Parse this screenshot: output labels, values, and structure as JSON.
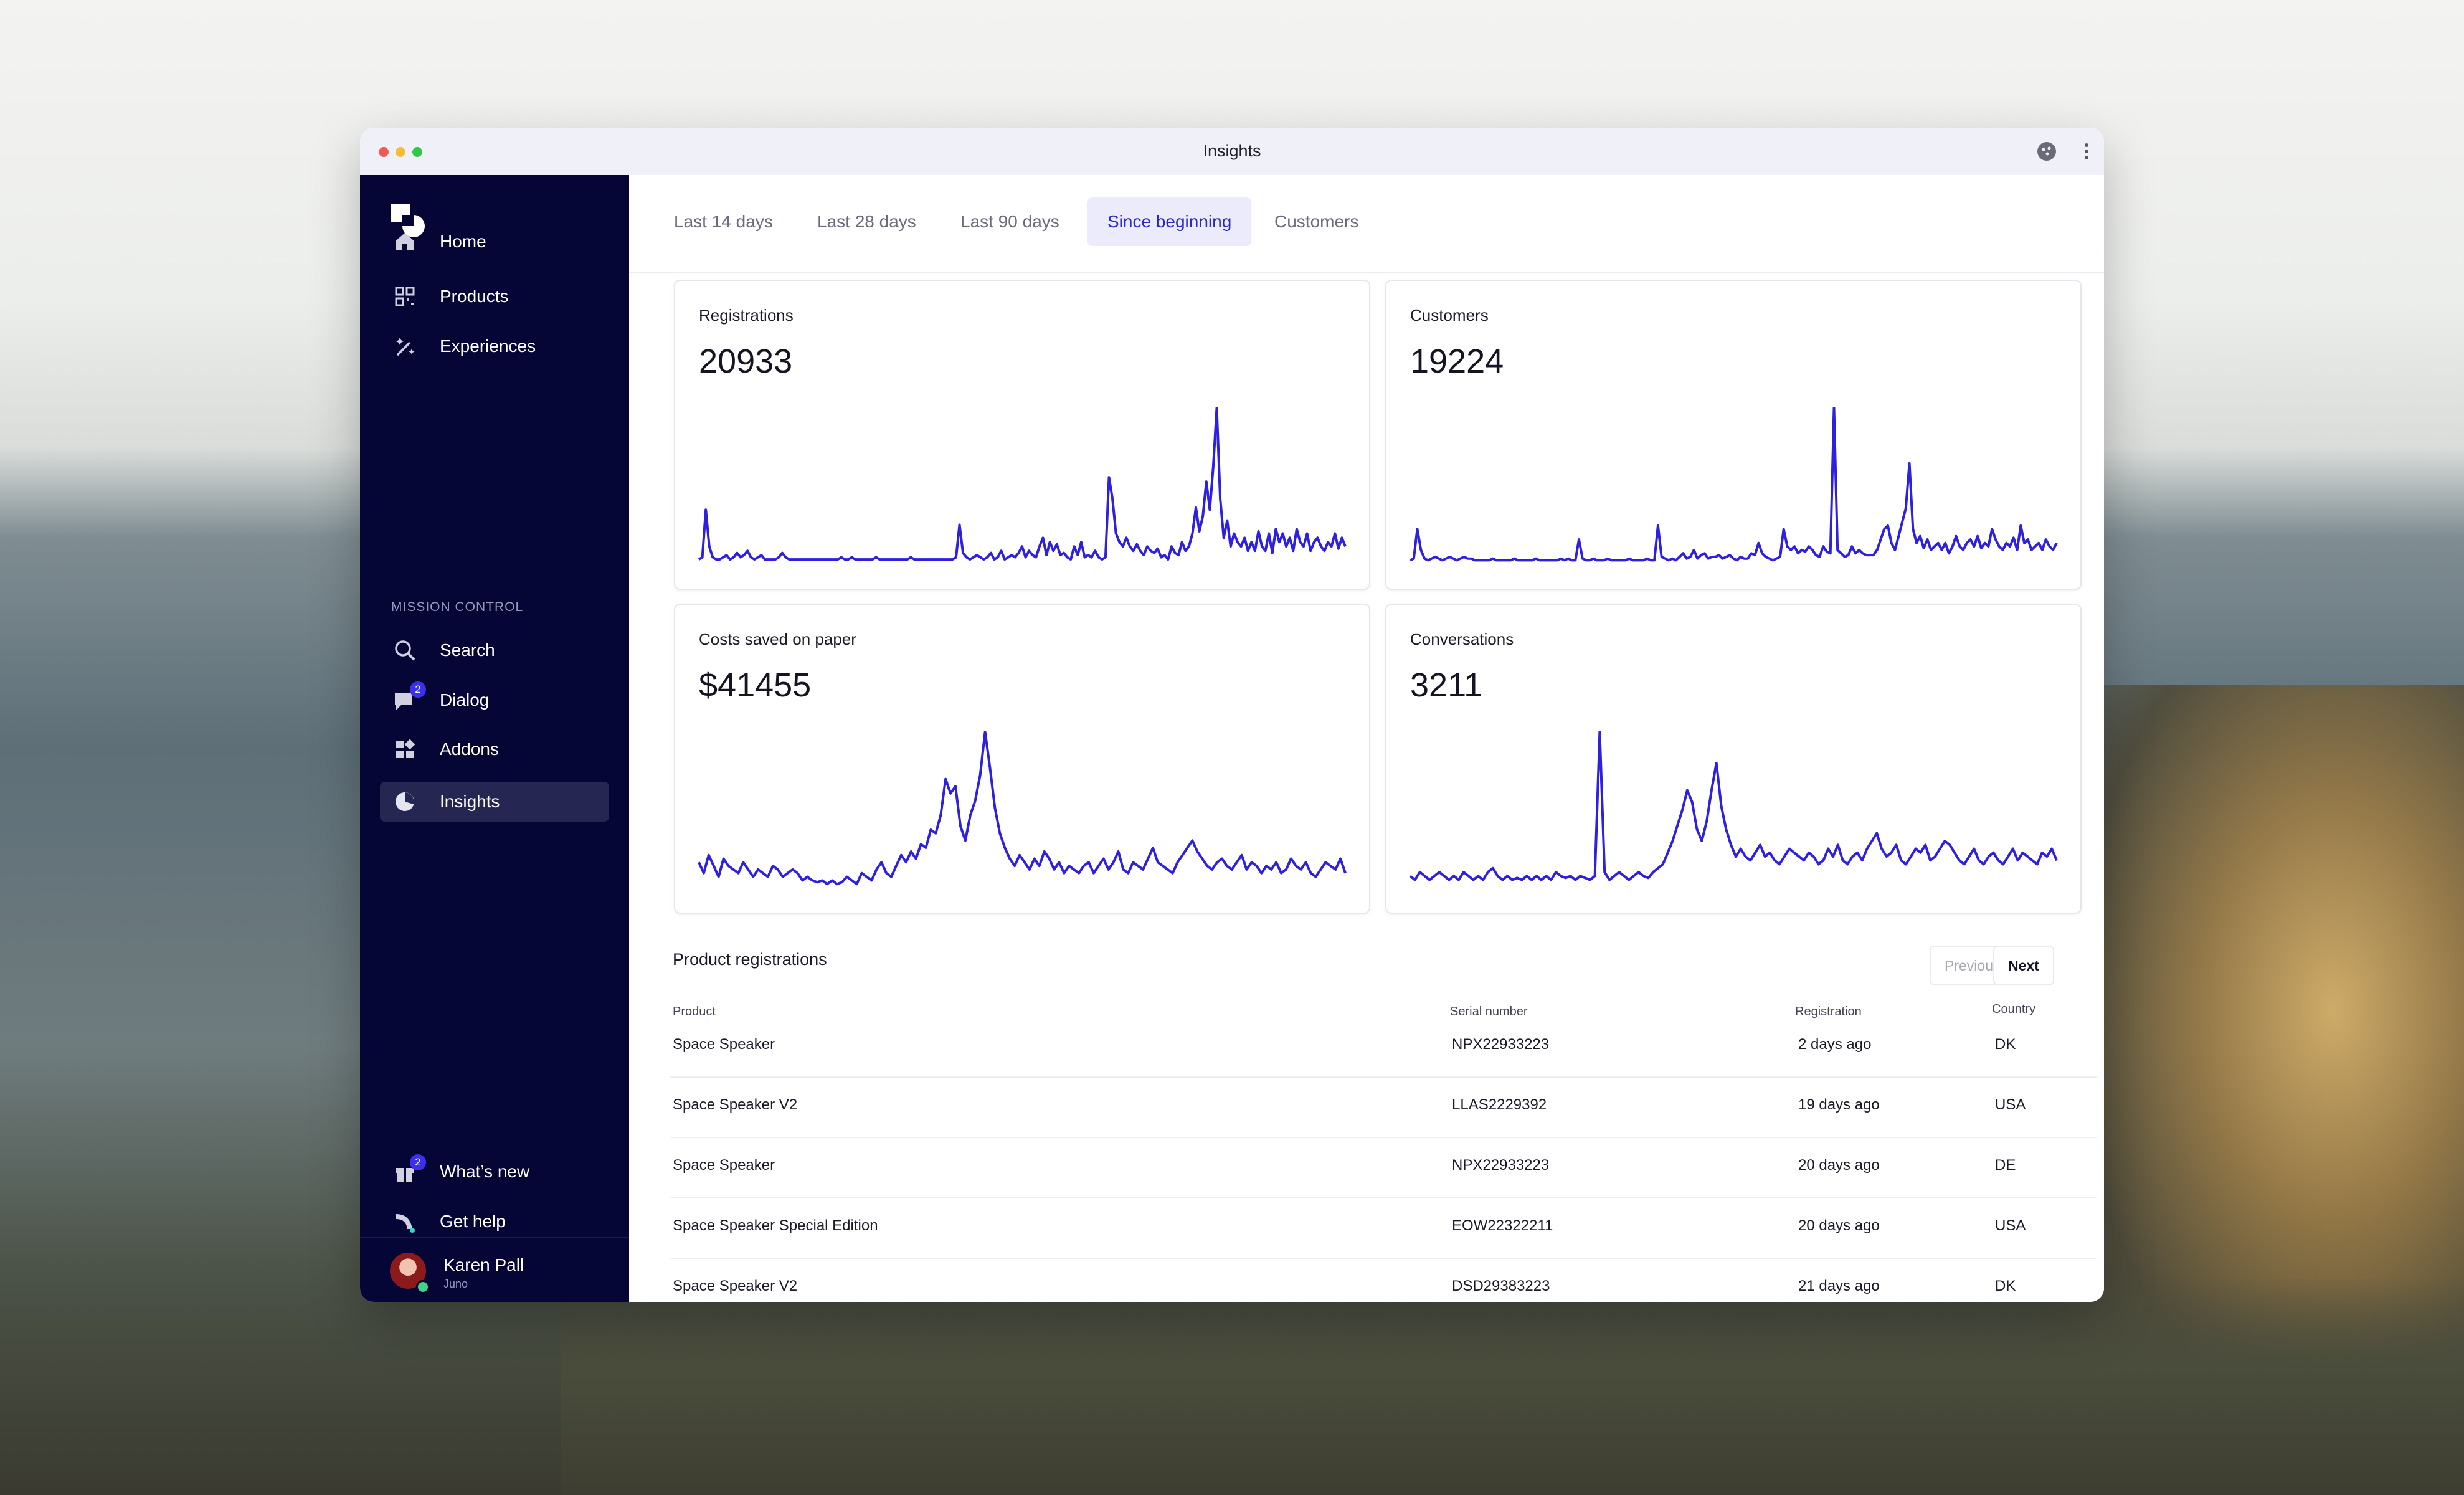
{
  "window": {
    "title": "Insights"
  },
  "sidebar": {
    "items": [
      {
        "label": "Home",
        "icon": "home-icon"
      },
      {
        "label": "Products",
        "icon": "qr-code-icon"
      },
      {
        "label": "Experiences",
        "icon": "magic-wand-icon"
      }
    ],
    "section_label": "MISSION CONTROL",
    "mission_items": [
      {
        "label": "Search",
        "icon": "search-icon"
      },
      {
        "label": "Dialog",
        "icon": "chat-icon",
        "badge": "2"
      },
      {
        "label": "Addons",
        "icon": "addons-grid-icon"
      },
      {
        "label": "Insights",
        "icon": "pie-chart-icon",
        "active": true
      }
    ],
    "bottom_items": [
      {
        "label": "What’s new",
        "icon": "gift-icon",
        "badge": "2"
      },
      {
        "label": "Get help",
        "icon": "help-icon"
      }
    ],
    "user": {
      "name": "Karen Pall",
      "org": "Juno"
    }
  },
  "tabs": [
    "Last 14 days",
    "Last 28 days",
    "Last 90 days",
    "Since beginning",
    "Customers"
  ],
  "active_tab": "Since beginning",
  "cards": [
    {
      "title": "Registrations",
      "value": "20933"
    },
    {
      "title": "Customers",
      "value": "19224"
    },
    {
      "title": "Costs saved on paper",
      "value": "$41455"
    },
    {
      "title": "Conversations",
      "value": "3211"
    }
  ],
  "chart_data": [
    {
      "type": "line",
      "title": "Registrations",
      "series": [
        {
          "values": [
            2,
            3,
            25,
            8,
            3,
            2,
            2,
            3,
            4,
            2,
            3,
            5,
            3,
            4,
            6,
            3,
            2,
            3,
            4,
            2,
            2,
            2,
            2,
            3,
            5,
            3,
            2,
            2,
            2,
            2,
            2,
            2,
            2,
            2,
            2,
            2,
            2,
            2,
            2,
            2,
            2,
            3,
            2,
            2,
            3,
            2,
            2,
            2,
            2,
            2,
            2,
            3,
            2,
            2,
            2,
            2,
            2,
            2,
            2,
            2,
            2,
            3,
            2,
            2,
            2,
            2,
            2,
            2,
            2,
            2,
            2,
            2,
            2,
            2,
            3,
            18,
            5,
            3,
            2,
            3,
            4,
            3,
            2,
            3,
            5,
            2,
            3,
            6,
            2,
            3,
            4,
            3,
            5,
            8,
            3,
            6,
            4,
            3,
            8,
            12,
            4,
            10,
            6,
            9,
            4,
            5,
            3,
            2,
            8,
            4,
            10,
            3,
            4,
            3,
            6,
            3,
            2,
            3,
            40,
            30,
            14,
            10,
            8,
            12,
            8,
            6,
            9,
            6,
            4,
            8,
            6,
            5,
            7,
            3,
            4,
            2,
            8,
            5,
            4,
            10,
            6,
            8,
            14,
            26,
            15,
            22,
            38,
            25,
            45,
            72,
            30,
            12,
            20,
            8,
            14,
            10,
            8,
            12,
            6,
            10,
            6,
            15,
            8,
            6,
            14,
            5,
            16,
            10,
            14,
            8,
            12,
            6,
            16,
            10,
            8,
            14,
            6,
            10,
            12,
            8,
            6,
            10,
            8,
            14,
            7,
            12,
            8
          ]
        }
      ]
    },
    {
      "type": "line",
      "title": "Customers",
      "series": [
        {
          "values": [
            2,
            3,
            20,
            8,
            3,
            2,
            3,
            4,
            3,
            2,
            3,
            4,
            3,
            2,
            3,
            4,
            3,
            3,
            2,
            2,
            2,
            2,
            2,
            3,
            2,
            2,
            2,
            2,
            2,
            3,
            2,
            2,
            2,
            2,
            2,
            3,
            2,
            2,
            2,
            2,
            2,
            2,
            3,
            2,
            3,
            2,
            2,
            14,
            3,
            2,
            2,
            3,
            2,
            2,
            2,
            3,
            2,
            2,
            2,
            2,
            2,
            3,
            2,
            2,
            2,
            2,
            3,
            2,
            2,
            22,
            4,
            3,
            2,
            3,
            2,
            4,
            6,
            3,
            4,
            8,
            3,
            5,
            6,
            3,
            4,
            4,
            5,
            3,
            4,
            5,
            3,
            2,
            4,
            3,
            3,
            6,
            5,
            12,
            6,
            4,
            3,
            2,
            3,
            4,
            20,
            10,
            8,
            10,
            6,
            8,
            7,
            10,
            8,
            5,
            4,
            10,
            7,
            6,
            90,
            8,
            6,
            4,
            5,
            10,
            6,
            8,
            6,
            5,
            5,
            5,
            8,
            14,
            20,
            22,
            12,
            8,
            16,
            24,
            32,
            58,
            20,
            12,
            16,
            9,
            14,
            8,
            10,
            12,
            8,
            12,
            6,
            10,
            16,
            10,
            8,
            12,
            14,
            10,
            16,
            9,
            12,
            10,
            20,
            14,
            10,
            8,
            12,
            10,
            15,
            8,
            22,
            12,
            14,
            8,
            10,
            12,
            8,
            14,
            10,
            8,
            12
          ]
        }
      ]
    },
    {
      "type": "line",
      "title": "Costs saved on paper",
      "series": [
        {
          "values": [
            14,
            8,
            18,
            12,
            6,
            16,
            12,
            10,
            8,
            14,
            10,
            6,
            10,
            8,
            6,
            12,
            10,
            6,
            8,
            10,
            8,
            4,
            6,
            4,
            3,
            4,
            2,
            4,
            2,
            3,
            6,
            4,
            2,
            8,
            6,
            4,
            10,
            14,
            8,
            6,
            12,
            18,
            14,
            20,
            16,
            24,
            22,
            32,
            30,
            40,
            60,
            52,
            56,
            34,
            26,
            40,
            48,
            62,
            86,
            66,
            44,
            30,
            22,
            16,
            12,
            18,
            14,
            10,
            16,
            12,
            20,
            16,
            10,
            14,
            8,
            12,
            10,
            8,
            12,
            14,
            8,
            12,
            16,
            10,
            14,
            20,
            10,
            8,
            14,
            12,
            10,
            16,
            22,
            14,
            12,
            10,
            8,
            14,
            18,
            22,
            26,
            20,
            16,
            12,
            10,
            14,
            16,
            12,
            10,
            14,
            18,
            10,
            14,
            12,
            8,
            12,
            10,
            14,
            8,
            10,
            16,
            12,
            10,
            14,
            8,
            6,
            10,
            14,
            12,
            10,
            16,
            8
          ]
        }
      ]
    },
    {
      "type": "line",
      "title": "Conversations",
      "series": [
        {
          "values": [
            6,
            4,
            8,
            6,
            4,
            6,
            8,
            6,
            4,
            6,
            4,
            8,
            6,
            4,
            6,
            4,
            8,
            10,
            6,
            4,
            6,
            4,
            5,
            4,
            6,
            4,
            6,
            4,
            6,
            4,
            8,
            6,
            5,
            6,
            4,
            6,
            5,
            4,
            6,
            80,
            8,
            4,
            6,
            8,
            6,
            4,
            6,
            8,
            6,
            5,
            8,
            10,
            12,
            18,
            24,
            32,
            40,
            50,
            44,
            30,
            24,
            34,
            50,
            64,
            42,
            30,
            22,
            16,
            20,
            16,
            14,
            18,
            22,
            16,
            18,
            14,
            12,
            16,
            20,
            18,
            16,
            14,
            18,
            16,
            12,
            14,
            20,
            16,
            22,
            14,
            12,
            16,
            18,
            14,
            20,
            24,
            28,
            20,
            16,
            18,
            22,
            14,
            12,
            16,
            20,
            18,
            22,
            14,
            16,
            20,
            24,
            22,
            18,
            14,
            12,
            16,
            20,
            14,
            12,
            16,
            18,
            14,
            12,
            16,
            20,
            14,
            18,
            16,
            14,
            12,
            18,
            16,
            20,
            14
          ]
        }
      ]
    }
  ],
  "registrations_table": {
    "title": "Product registrations",
    "pagination": {
      "previous": "Previous",
      "next": "Next"
    },
    "columns": [
      "Product",
      "Serial number",
      "Registration",
      "Country"
    ],
    "rows": [
      [
        "Space Speaker",
        "NPX22933223",
        "2 days ago",
        "DK"
      ],
      [
        "Space Speaker V2",
        "LLAS2229392",
        "19 days ago",
        "USA"
      ],
      [
        "Space Speaker",
        "NPX22933223",
        "20 days ago",
        "DE"
      ],
      [
        "Space Speaker Special Edition",
        "EOW22322211",
        "20 days ago",
        "USA"
      ],
      [
        "Space Speaker V2",
        "DSD29383223",
        "21 days ago",
        "DK"
      ]
    ]
  },
  "colors": {
    "accent": "#2d20e0",
    "sidebar": "#050536",
    "active_tab_bg": "#ebebfc"
  }
}
